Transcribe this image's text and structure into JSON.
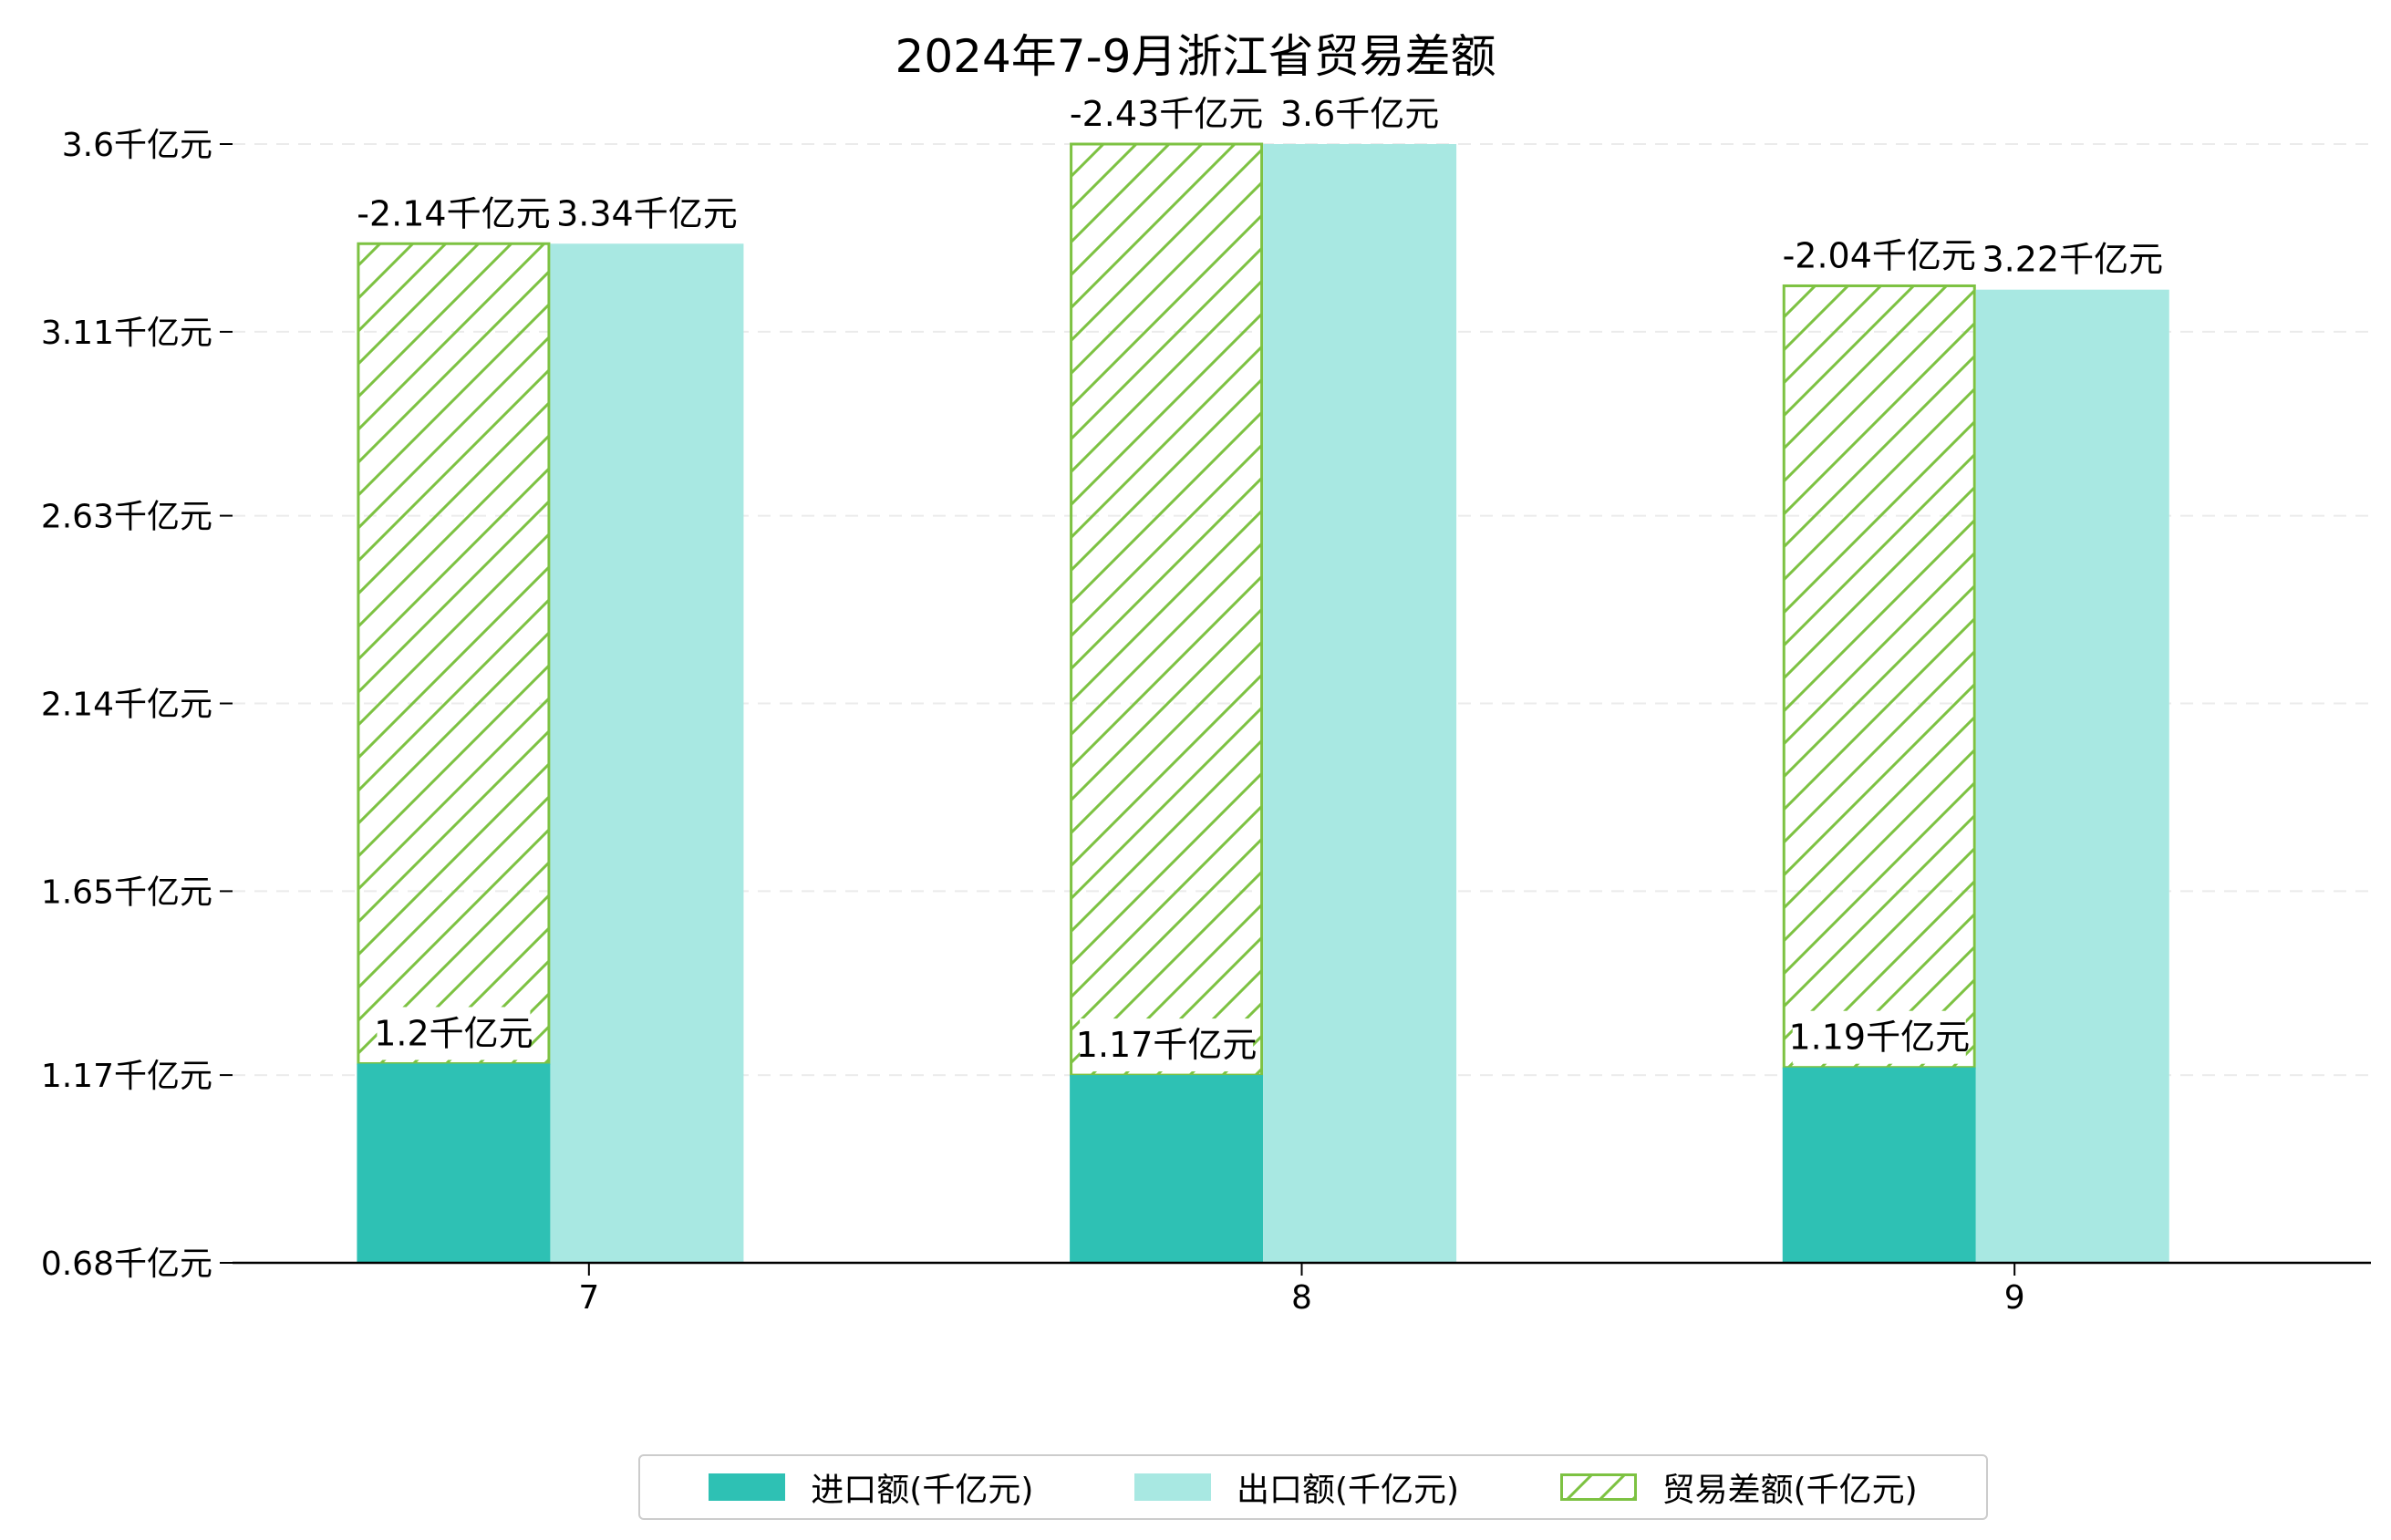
{
  "chart_data": {
    "type": "bar",
    "title": "2024年7-9月浙江省贸易差额",
    "xlabel": "",
    "ylabel": "",
    "categories": [
      "7",
      "8",
      "9"
    ],
    "ylim": [
      0.68,
      3.6
    ],
    "y_ticks": [
      "0.68千亿元",
      "1.17千亿元",
      "1.65千亿元",
      "2.14千亿元",
      "2.63千亿元",
      "3.11千亿元",
      "3.6千亿元"
    ],
    "y_tick_values": [
      0.68,
      1.17,
      1.65,
      2.14,
      2.63,
      3.11,
      3.6
    ],
    "grid": true,
    "legend_position": "bottom",
    "series": [
      {
        "name": "进口额(千亿元)",
        "values": [
          1.2,
          1.17,
          1.19
        ],
        "labels": [
          "1.2千亿元",
          "1.17千亿元",
          "1.19千亿元"
        ],
        "color": "#2EC1B4"
      },
      {
        "name": "出口额(千亿元)",
        "values": [
          3.34,
          3.6,
          3.22
        ],
        "labels": [
          "3.34千亿元",
          "3.6千亿元",
          "3.22千亿元"
        ],
        "color": "#A8E8E2"
      },
      {
        "name": "贸易差额(千亿元)",
        "values": [
          -2.14,
          -2.43,
          -2.04
        ],
        "labels": [
          "-2.14千亿元",
          "-2.43千亿元",
          "-2.04千亿元"
        ],
        "color": "#7DC242"
      }
    ]
  }
}
